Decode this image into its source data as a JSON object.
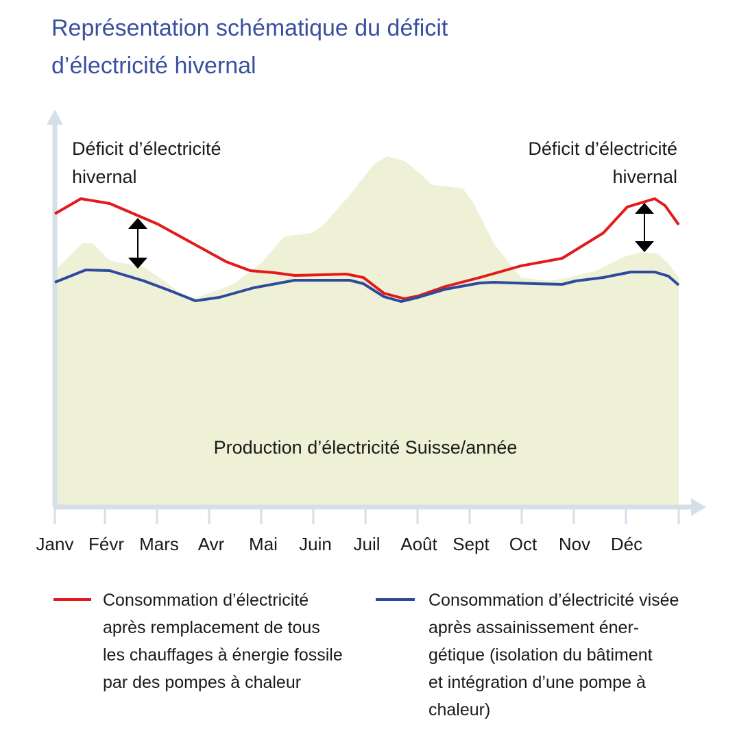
{
  "header": {
    "title": [
      "Représentation schématique du déficit",
      "d’électricité hivernal"
    ]
  },
  "annotations": {
    "deficit_left": [
      "Déficit d’électricité",
      "hivernal"
    ],
    "deficit_right": [
      "Déficit d’électricité",
      "hivernal"
    ],
    "production": "Production d’électricité Suisse/année"
  },
  "x_axis": {
    "months": [
      "Janv",
      "Févr",
      "Mars",
      "Avr",
      "Mai",
      "Juin",
      "Juil",
      "Août",
      "Sept",
      "Oct",
      "Nov",
      "Déc"
    ]
  },
  "legend": [
    {
      "lines": [
        "Consommation d’électricité",
        "après remplacement de tous",
        "les chauffages à énergie fossile",
        "par des pompes à chaleur"
      ]
    },
    {
      "lines": [
        "Consommation d’électricité visée",
        "après assainissement éner-",
        "gétique (isolation du bâtiment",
        "et intégration d’une pompe à",
        "chaleur)"
      ]
    }
  ]
}
